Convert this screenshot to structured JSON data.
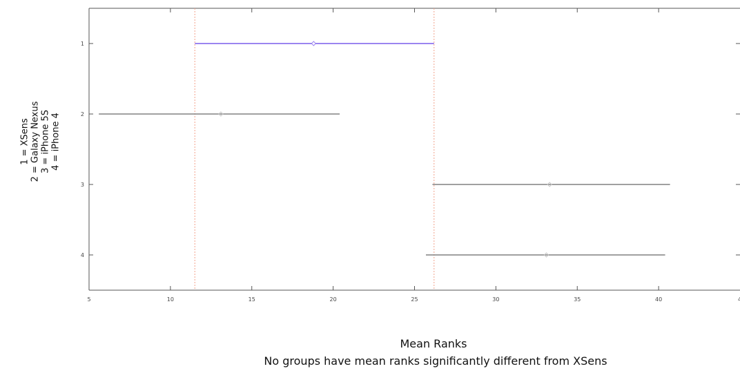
{
  "chart_data": {
    "type": "interval",
    "x_axis": {
      "label": "Mean Ranks",
      "range": [
        5,
        45
      ],
      "ticks": [
        5,
        10,
        15,
        20,
        25,
        30,
        35,
        40
      ],
      "tick_labels": [
        "5",
        "10",
        "15",
        "20",
        "25",
        "30",
        "35",
        "40"
      ],
      "edge_label": "4"
    },
    "y_axis": {
      "label_lines": [
        "1 = XSens",
        "2 = Galaxy Nexus",
        "3 = iPhone 5S",
        "4 = iPhone 4"
      ],
      "range": [
        0.5,
        4.5
      ],
      "ticks": [
        1,
        2,
        3,
        4
      ],
      "tick_labels": [
        "1",
        "2",
        "3",
        "4"
      ]
    },
    "subtitle": "No groups have mean ranks significantly different from XSens",
    "reference_lines_x": [
      11.5,
      26.2
    ],
    "series": [
      {
        "group": 1,
        "mean": 18.8,
        "low": 11.5,
        "high": 26.2,
        "highlight": true
      },
      {
        "group": 2,
        "mean": 13.1,
        "low": 5.6,
        "high": 20.4,
        "highlight": false
      },
      {
        "group": 3,
        "mean": 33.3,
        "low": 26.1,
        "high": 40.7,
        "highlight": false
      },
      {
        "group": 4,
        "mean": 33.1,
        "low": 25.7,
        "high": 40.4,
        "highlight": false
      }
    ],
    "colors": {
      "highlight": "#9b84f0",
      "interval": "#808080",
      "reference_line": "#f2a08a",
      "axis": "#555555"
    }
  }
}
